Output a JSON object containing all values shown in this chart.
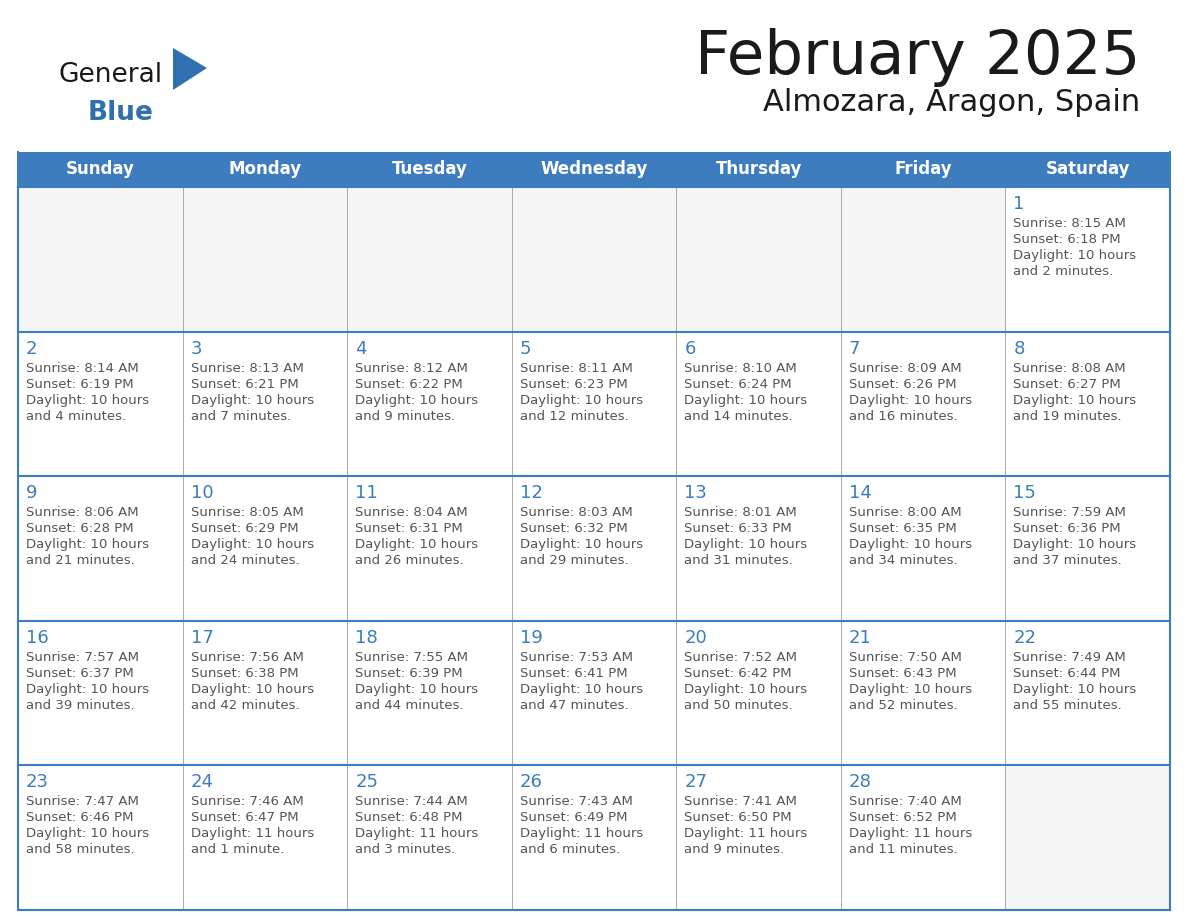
{
  "title": "February 2025",
  "subtitle": "Almozara, Aragon, Spain",
  "header_bg_color": "#3c7cbf",
  "header_text_color": "#ffffff",
  "border_color": "#3c7cbf",
  "thin_line_color": "#aaaaaa",
  "day_headers": [
    "Sunday",
    "Monday",
    "Tuesday",
    "Wednesday",
    "Thursday",
    "Friday",
    "Saturday"
  ],
  "title_color": "#1a1a1a",
  "subtitle_color": "#1a1a1a",
  "day_number_color": "#3c7cbf",
  "cell_text_color": "#555555",
  "logo_general_color": "#1a1a1a",
  "logo_blue_color": "#3070b0",
  "cell_bg_color": "#ffffff",
  "empty_cell_bg_color": "#f5f5f5",
  "calendar_data": [
    [
      null,
      null,
      null,
      null,
      null,
      null,
      {
        "day": "1",
        "sunrise": "8:15 AM",
        "sunset": "6:18 PM",
        "daylight": "10 hours",
        "daylight2": "and 2 minutes."
      }
    ],
    [
      {
        "day": "2",
        "sunrise": "8:14 AM",
        "sunset": "6:19 PM",
        "daylight": "10 hours",
        "daylight2": "and 4 minutes."
      },
      {
        "day": "3",
        "sunrise": "8:13 AM",
        "sunset": "6:21 PM",
        "daylight": "10 hours",
        "daylight2": "and 7 minutes."
      },
      {
        "day": "4",
        "sunrise": "8:12 AM",
        "sunset": "6:22 PM",
        "daylight": "10 hours",
        "daylight2": "and 9 minutes."
      },
      {
        "day": "5",
        "sunrise": "8:11 AM",
        "sunset": "6:23 PM",
        "daylight": "10 hours",
        "daylight2": "and 12 minutes."
      },
      {
        "day": "6",
        "sunrise": "8:10 AM",
        "sunset": "6:24 PM",
        "daylight": "10 hours",
        "daylight2": "and 14 minutes."
      },
      {
        "day": "7",
        "sunrise": "8:09 AM",
        "sunset": "6:26 PM",
        "daylight": "10 hours",
        "daylight2": "and 16 minutes."
      },
      {
        "day": "8",
        "sunrise": "8:08 AM",
        "sunset": "6:27 PM",
        "daylight": "10 hours",
        "daylight2": "and 19 minutes."
      }
    ],
    [
      {
        "day": "9",
        "sunrise": "8:06 AM",
        "sunset": "6:28 PM",
        "daylight": "10 hours",
        "daylight2": "and 21 minutes."
      },
      {
        "day": "10",
        "sunrise": "8:05 AM",
        "sunset": "6:29 PM",
        "daylight": "10 hours",
        "daylight2": "and 24 minutes."
      },
      {
        "day": "11",
        "sunrise": "8:04 AM",
        "sunset": "6:31 PM",
        "daylight": "10 hours",
        "daylight2": "and 26 minutes."
      },
      {
        "day": "12",
        "sunrise": "8:03 AM",
        "sunset": "6:32 PM",
        "daylight": "10 hours",
        "daylight2": "and 29 minutes."
      },
      {
        "day": "13",
        "sunrise": "8:01 AM",
        "sunset": "6:33 PM",
        "daylight": "10 hours",
        "daylight2": "and 31 minutes."
      },
      {
        "day": "14",
        "sunrise": "8:00 AM",
        "sunset": "6:35 PM",
        "daylight": "10 hours",
        "daylight2": "and 34 minutes."
      },
      {
        "day": "15",
        "sunrise": "7:59 AM",
        "sunset": "6:36 PM",
        "daylight": "10 hours",
        "daylight2": "and 37 minutes."
      }
    ],
    [
      {
        "day": "16",
        "sunrise": "7:57 AM",
        "sunset": "6:37 PM",
        "daylight": "10 hours",
        "daylight2": "and 39 minutes."
      },
      {
        "day": "17",
        "sunrise": "7:56 AM",
        "sunset": "6:38 PM",
        "daylight": "10 hours",
        "daylight2": "and 42 minutes."
      },
      {
        "day": "18",
        "sunrise": "7:55 AM",
        "sunset": "6:39 PM",
        "daylight": "10 hours",
        "daylight2": "and 44 minutes."
      },
      {
        "day": "19",
        "sunrise": "7:53 AM",
        "sunset": "6:41 PM",
        "daylight": "10 hours",
        "daylight2": "and 47 minutes."
      },
      {
        "day": "20",
        "sunrise": "7:52 AM",
        "sunset": "6:42 PM",
        "daylight": "10 hours",
        "daylight2": "and 50 minutes."
      },
      {
        "day": "21",
        "sunrise": "7:50 AM",
        "sunset": "6:43 PM",
        "daylight": "10 hours",
        "daylight2": "and 52 minutes."
      },
      {
        "day": "22",
        "sunrise": "7:49 AM",
        "sunset": "6:44 PM",
        "daylight": "10 hours",
        "daylight2": "and 55 minutes."
      }
    ],
    [
      {
        "day": "23",
        "sunrise": "7:47 AM",
        "sunset": "6:46 PM",
        "daylight": "10 hours",
        "daylight2": "and 58 minutes."
      },
      {
        "day": "24",
        "sunrise": "7:46 AM",
        "sunset": "6:47 PM",
        "daylight": "11 hours",
        "daylight2": "and 1 minute."
      },
      {
        "day": "25",
        "sunrise": "7:44 AM",
        "sunset": "6:48 PM",
        "daylight": "11 hours",
        "daylight2": "and 3 minutes."
      },
      {
        "day": "26",
        "sunrise": "7:43 AM",
        "sunset": "6:49 PM",
        "daylight": "11 hours",
        "daylight2": "and 6 minutes."
      },
      {
        "day": "27",
        "sunrise": "7:41 AM",
        "sunset": "6:50 PM",
        "daylight": "11 hours",
        "daylight2": "and 9 minutes."
      },
      {
        "day": "28",
        "sunrise": "7:40 AM",
        "sunset": "6:52 PM",
        "daylight": "11 hours",
        "daylight2": "and 11 minutes."
      },
      null
    ]
  ]
}
